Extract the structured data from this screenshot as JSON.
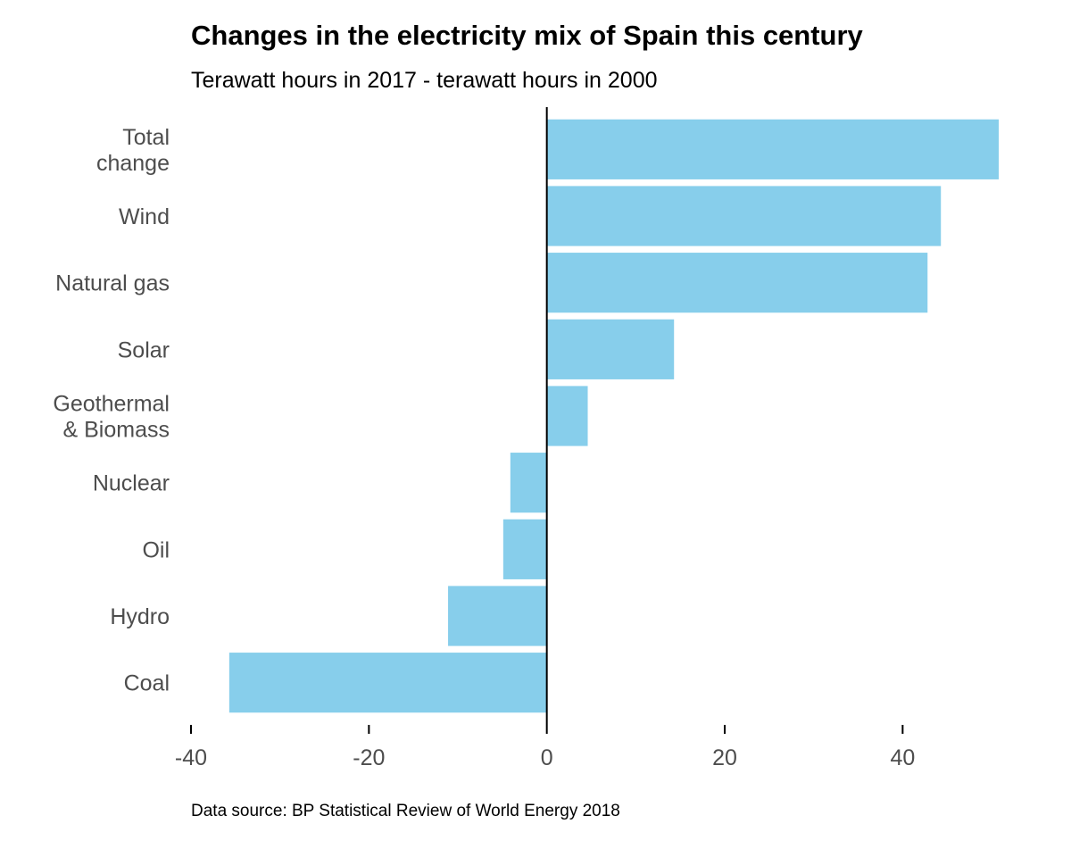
{
  "chart_data": {
    "type": "bar",
    "orientation": "horizontal",
    "title": "Changes in the electricity mix of Spain this century",
    "subtitle": "Terawatt hours in 2017 - terawatt hours in 2000",
    "caption": "Data source: BP Statistical Review of World Energy 2018",
    "xlabel": "",
    "ylabel": "",
    "categories": [
      "Total change",
      "Wind",
      "Natural gas",
      "Solar",
      "Geothermal & Biomass",
      "Nuclear",
      "Oil",
      "Hydro",
      "Coal"
    ],
    "category_lines": [
      [
        "Total",
        "change"
      ],
      [
        "Wind"
      ],
      [
        "Natural gas"
      ],
      [
        "Solar"
      ],
      [
        "Geothermal",
        "& Biomass"
      ],
      [
        "Nuclear"
      ],
      [
        "Oil"
      ],
      [
        "Hydro"
      ],
      [
        "Coal"
      ]
    ],
    "values": [
      50.8,
      44.3,
      42.8,
      14.3,
      4.6,
      -4.1,
      -4.9,
      -11.1,
      -35.7
    ],
    "xlim": [
      -40,
      51
    ],
    "xticks": [
      -40,
      -20,
      0,
      20,
      40
    ],
    "xtick_labels": [
      "-40",
      "-20",
      "0",
      "20",
      "40"
    ],
    "grid": false,
    "legend": "none",
    "colors": {
      "bar": "#87ceeb",
      "zero_line": "#000000",
      "tick_label": "#4d4d4d",
      "axis": "#000000"
    }
  }
}
